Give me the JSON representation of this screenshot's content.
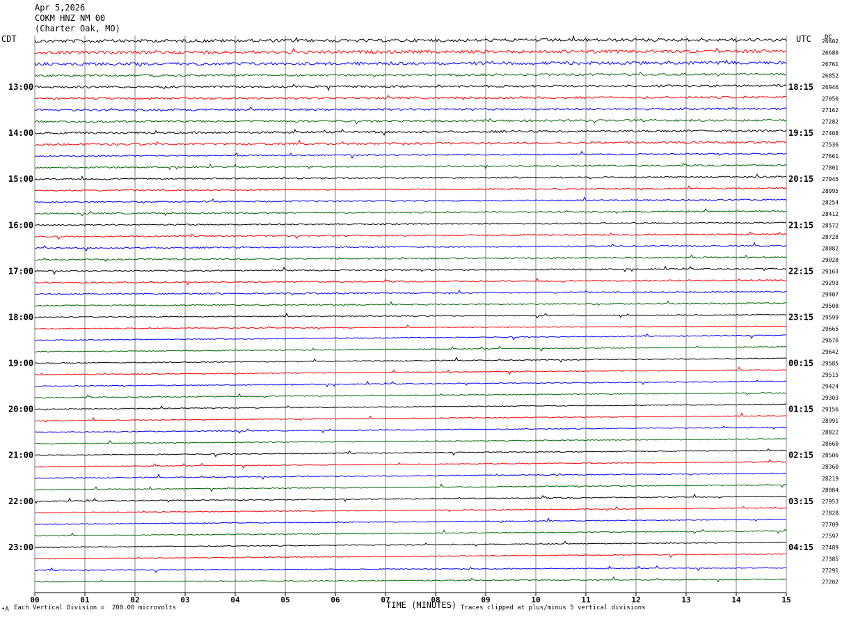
{
  "header": {
    "date": "Apr 5,2026",
    "station": "COKM HNZ NM 00",
    "location": "(Charter Oak, MO)"
  },
  "left_zone_label": "CDT",
  "right_zone_label": "UTC",
  "dc_label": "DC",
  "footer": {
    "scale": "Each Vertical Division =  200.00 microvolts",
    "clip": "Traces clipped at plus/minus 5 vertical divisions",
    "mark": "•A"
  },
  "chart_data": {
    "type": "line",
    "title": "Apr 5,2026 COKM HNZ NM 00 (Charter Oak, MO)",
    "xlabel": "TIME (MINUTES)",
    "xlim": [
      0,
      15
    ],
    "x_ticks": [
      "00",
      "01",
      "02",
      "03",
      "04",
      "05",
      "06",
      "07",
      "08",
      "09",
      "10",
      "11",
      "12",
      "13",
      "14",
      "15"
    ],
    "left_hour_labels": [
      "13:00",
      "14:00",
      "15:00",
      "16:00",
      "17:00",
      "18:00",
      "19:00",
      "20:00",
      "21:00",
      "22:00",
      "23:00"
    ],
    "right_hour_labels": [
      "18:15",
      "19:15",
      "20:15",
      "21:15",
      "22:15",
      "23:15",
      "00:15",
      "01:15",
      "02:15",
      "03:15",
      "04:15"
    ],
    "trace_colors": [
      "#000000",
      "#ff0000",
      "#0000ff",
      "#006400"
    ],
    "dc_values": [
      "26602",
      "26680",
      "26761",
      "26852",
      "26946",
      "27050",
      "27162",
      "27282",
      "27408",
      "27536",
      "27661",
      "27801",
      "27945",
      "28095",
      "28254",
      "28412",
      "28572",
      "28728",
      "28882",
      "29028",
      "29163",
      "29293",
      "29407",
      "29508",
      "29599",
      "29665",
      "29676",
      "29642",
      "29585",
      "29515",
      "29424",
      "29303",
      "29156",
      "28991",
      "28822",
      "28660",
      "28506",
      "28360",
      "28219",
      "28084",
      "27953",
      "27828",
      "27709",
      "27597",
      "27489",
      "27385",
      "27291",
      "27202"
    ],
    "grid": true
  }
}
